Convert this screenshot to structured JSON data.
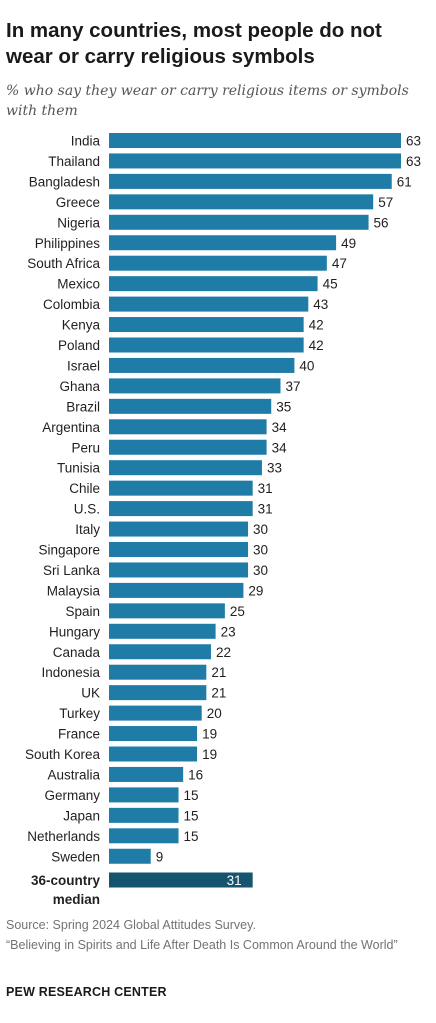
{
  "title": "In many countries, most people do not wear or carry religious symbols",
  "subtitle": "% who say they wear or carry religious items or symbols with them",
  "footer": {
    "source": "Source: Spring 2024 Global Attitudes Survey.",
    "note": "“Believing in Spirits and Life After Death Is Common Around the World”",
    "brand": "PEW RESEARCH CENTER"
  },
  "colors": {
    "bar": "#1f7ca6",
    "median_bar": "#16536f",
    "median_label": "#ffffff"
  },
  "chart_data": {
    "type": "bar",
    "orientation": "horizontal",
    "title": "In many countries, most people do not wear or carry religious symbols",
    "subtitle": "% who say they wear or carry religious items or symbols with them",
    "xlim": [
      0,
      63
    ],
    "categories": [
      "India",
      "Thailand",
      "Bangladesh",
      "Greece",
      "Nigeria",
      "Philippines",
      "South Africa",
      "Mexico",
      "Colombia",
      "Kenya",
      "Poland",
      "Israel",
      "Ghana",
      "Brazil",
      "Argentina",
      "Peru",
      "Tunisia",
      "Chile",
      "U.S.",
      "Italy",
      "Singapore",
      "Sri Lanka",
      "Malaysia",
      "Spain",
      "Hungary",
      "Canada",
      "Indonesia",
      "UK",
      "Turkey",
      "France",
      "South Korea",
      "Australia",
      "Germany",
      "Japan",
      "Netherlands",
      "Sweden"
    ],
    "values": [
      63,
      63,
      61,
      57,
      56,
      49,
      47,
      45,
      43,
      42,
      42,
      40,
      37,
      35,
      34,
      34,
      33,
      31,
      31,
      30,
      30,
      30,
      29,
      25,
      23,
      22,
      21,
      21,
      20,
      19,
      19,
      16,
      15,
      15,
      15,
      9
    ],
    "median": {
      "label_line1": "36-country",
      "label_line2": "median",
      "value": 31
    },
    "grid": false,
    "legend": "none"
  }
}
